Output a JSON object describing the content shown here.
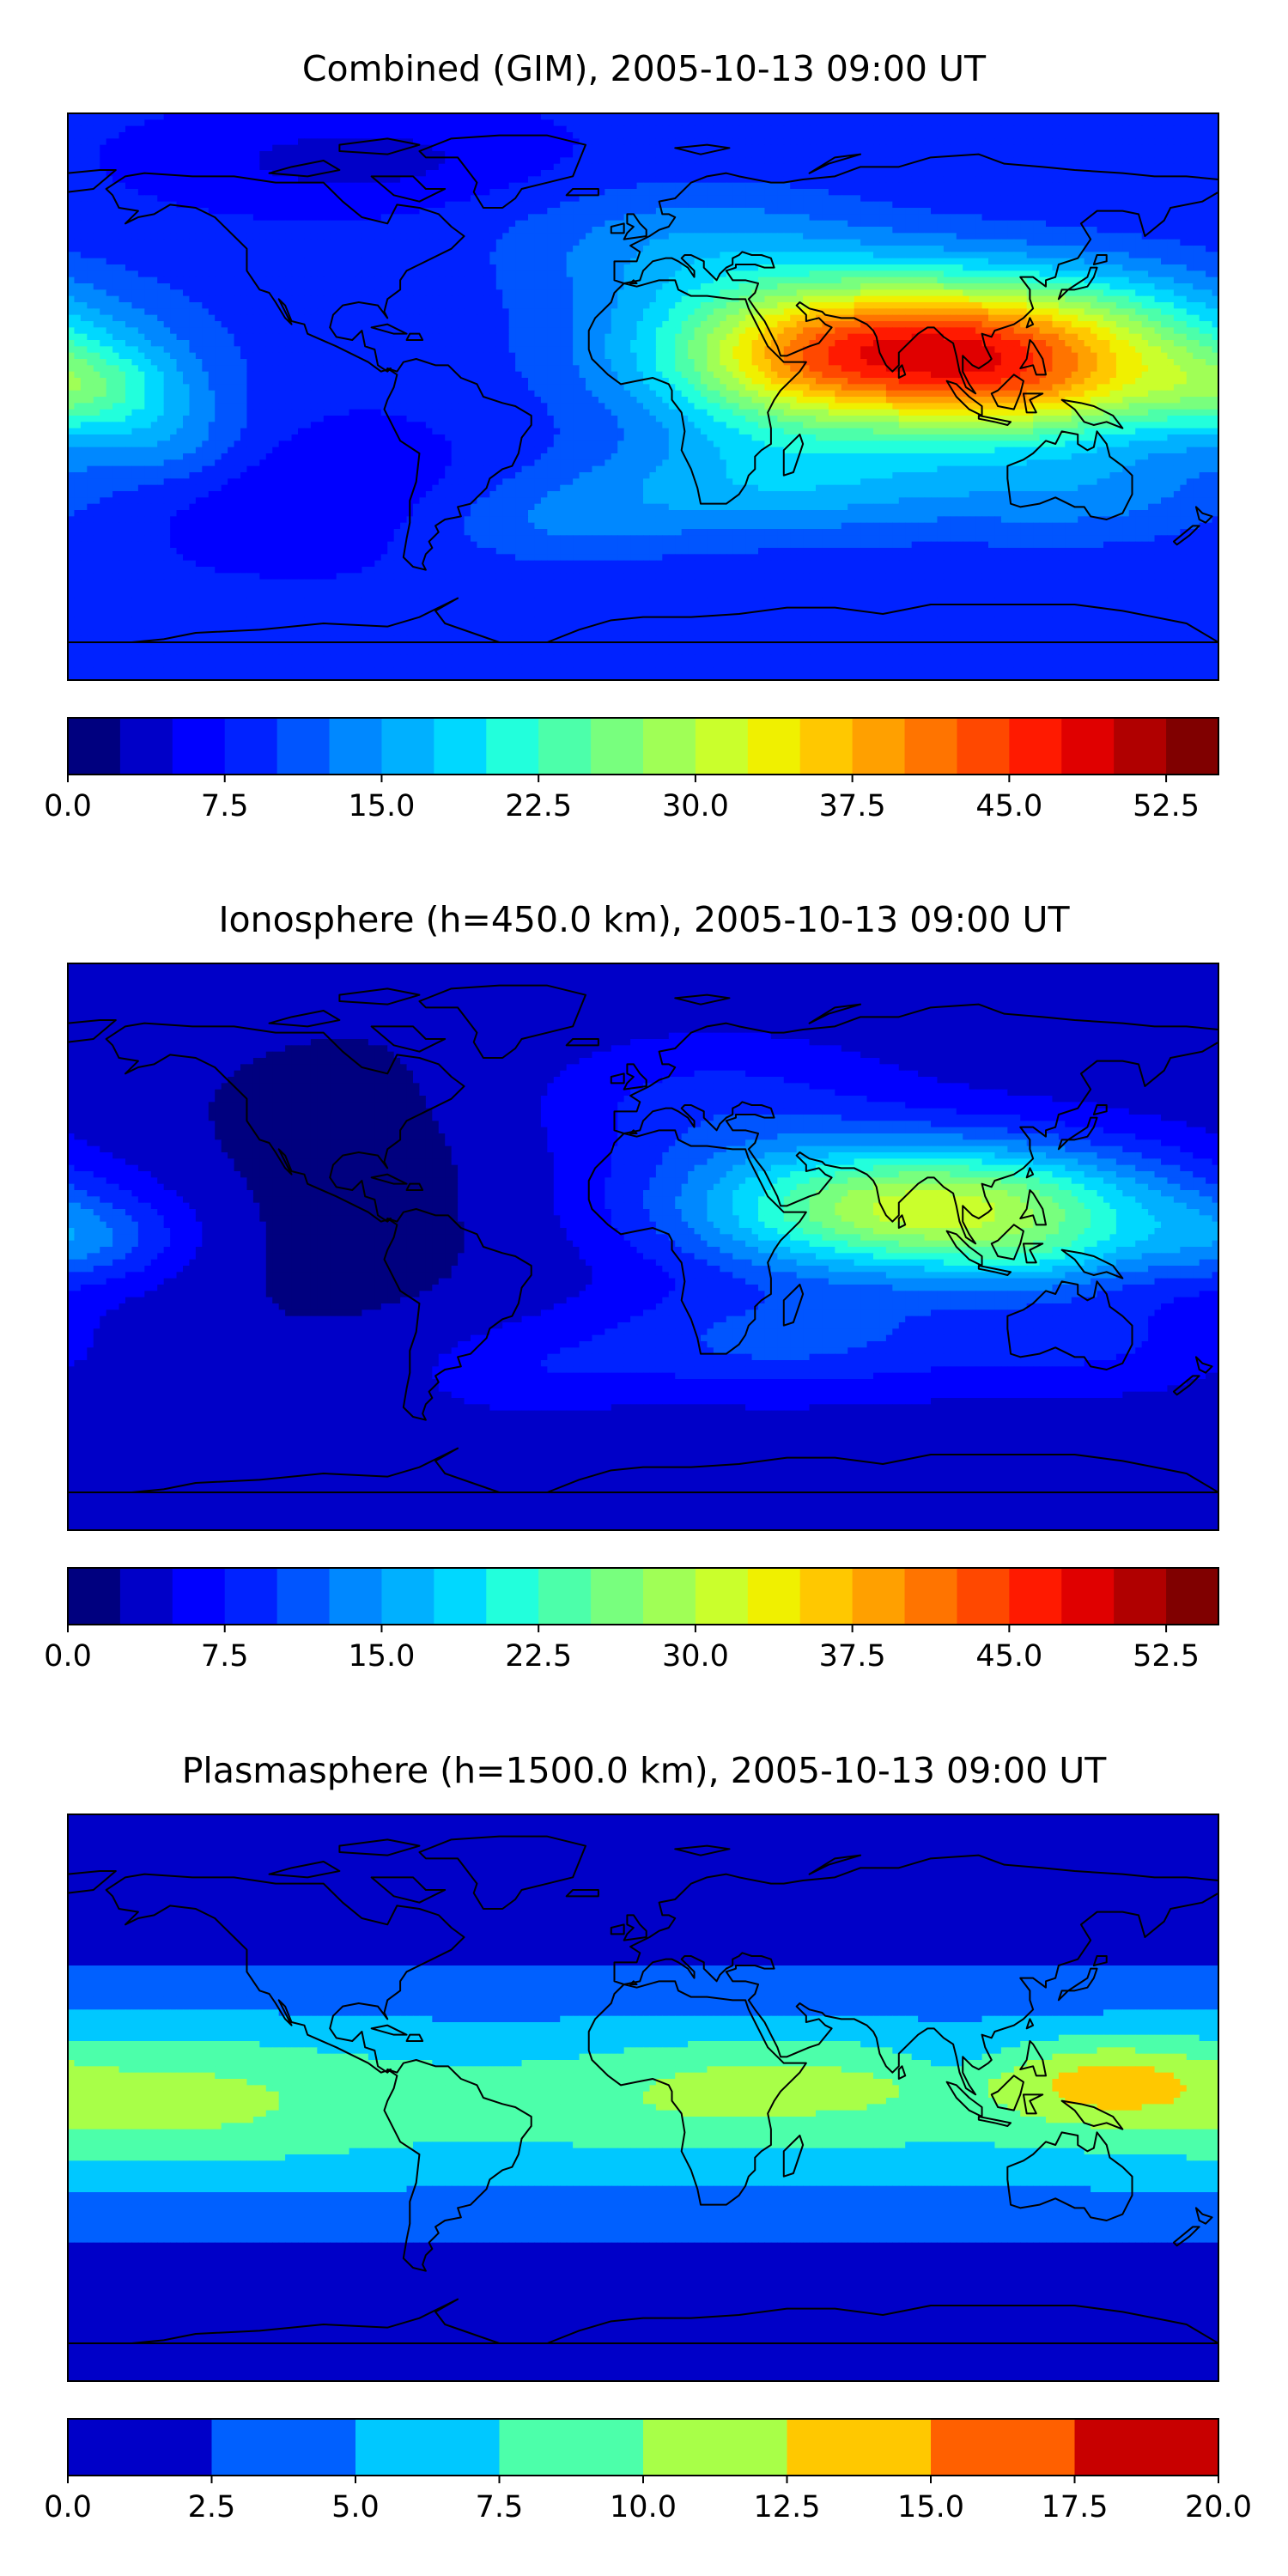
{
  "figure": {
    "background": "#ffffff",
    "panels": [
      {
        "title": "Combined (GIM), 2005-10-13 09:00 UT"
      },
      {
        "title": "Ionosphere  (h=450.0 km), 2005-10-13 09:00 UT"
      },
      {
        "title": "Plasmasphere (h=1500.0 km), 2005-10-13 09:00 UT"
      }
    ]
  },
  "chart_data": [
    {
      "type": "heatmap",
      "title": "Combined (GIM), 2005-10-13 09:00 UT",
      "projection": "PlateCarree global map with coastlines",
      "grid": false,
      "legend": "horizontal colorbar below map",
      "colorbar": {
        "min": 0,
        "max": 55,
        "step": 2.5,
        "ticks": [
          0,
          7.5,
          15,
          22.5,
          30,
          37.5,
          45,
          52.5
        ],
        "tick_labels": [
          "0.0",
          "7.5",
          "15.0",
          "22.5",
          "30.0",
          "37.5",
          "45.0",
          "52.5"
        ],
        "colors": [
          "#00007f",
          "#0000c8",
          "#0000ff",
          "#0022ff",
          "#0055ff",
          "#0088ff",
          "#00b0ff",
          "#00d8ff",
          "#22ffdc",
          "#4cffaa",
          "#78ff7e",
          "#a0ff56",
          "#caff2c",
          "#f0f000",
          "#ffc800",
          "#ffa000",
          "#ff7400",
          "#ff4800",
          "#ff1a00",
          "#e00000",
          "#b00000",
          "#800000"
        ]
      },
      "field": {
        "base": 8,
        "blobs": [
          {
            "lon": 95,
            "lat": 14,
            "slon": 55,
            "slat": 17,
            "amp": 40
          },
          {
            "lon": 45,
            "lat": 10,
            "slon": 26,
            "slat": 17,
            "amp": 6
          },
          {
            "lon": 120,
            "lat": -2,
            "slon": 25,
            "slat": 9,
            "amp": 5
          },
          {
            "lon": 40,
            "lat": -28,
            "slon": 45,
            "slat": 12,
            "amp": 8
          },
          {
            "lon": 140,
            "lat": -30,
            "slon": 35,
            "slat": 12,
            "amp": 5
          },
          {
            "lon": 15,
            "lat": 48,
            "slon": 40,
            "slat": 14,
            "amp": 6
          },
          {
            "lon": -175,
            "lat": 2,
            "slon": 22,
            "slat": 10,
            "amp": 10
          },
          {
            "lon": -150,
            "lat": -15,
            "slon": 20,
            "slat": 10,
            "amp": 5
          },
          {
            "lon": -30,
            "lat": -40,
            "slon": 30,
            "slat": 10,
            "amp": 4
          },
          {
            "lon": -90,
            "lat": 75,
            "slon": 40,
            "slat": 10,
            "amp": -4
          },
          {
            "lon": -100,
            "lat": -30,
            "slon": 40,
            "slat": 15,
            "amp": -3
          }
        ]
      }
    },
    {
      "type": "heatmap",
      "title": "Ionosphere  (h=450.0 km), 2005-10-13 09:00 UT",
      "projection": "PlateCarree global map with coastlines",
      "grid": false,
      "legend": "horizontal colorbar below map",
      "colorbar": {
        "min": 0,
        "max": 55,
        "step": 2.5,
        "ticks": [
          0,
          7.5,
          15,
          22.5,
          30,
          37.5,
          45,
          52.5
        ],
        "tick_labels": [
          "0.0",
          "7.5",
          "15.0",
          "22.5",
          "30.0",
          "37.5",
          "45.0",
          "52.5"
        ],
        "colors": [
          "#00007f",
          "#0000c8",
          "#0000ff",
          "#0022ff",
          "#0055ff",
          "#0088ff",
          "#00b0ff",
          "#00d8ff",
          "#22ffdc",
          "#4cffaa",
          "#78ff7e",
          "#a0ff56",
          "#caff2c",
          "#f0f000",
          "#ffc800",
          "#ffa000",
          "#ff7400",
          "#ff4800",
          "#ff1a00",
          "#e00000",
          "#b00000",
          "#800000"
        ]
      },
      "field": {
        "base": 3.5,
        "blobs": [
          {
            "lon": 90,
            "lat": 12,
            "slon": 52,
            "slat": 15,
            "amp": 28
          },
          {
            "lon": 125,
            "lat": -3,
            "slon": 20,
            "slat": 8,
            "amp": 4
          },
          {
            "lon": 40,
            "lat": -30,
            "slon": 45,
            "slat": 12,
            "amp": 7
          },
          {
            "lon": 140,
            "lat": -30,
            "slon": 35,
            "slat": 12,
            "amp": 4
          },
          {
            "lon": 20,
            "lat": 45,
            "slon": 40,
            "slat": 15,
            "amp": 5
          },
          {
            "lon": -175,
            "lat": 2,
            "slon": 22,
            "slat": 10,
            "amp": 7
          },
          {
            "lon": -40,
            "lat": -40,
            "slon": 25,
            "slat": 10,
            "amp": 3
          },
          {
            "lon": -90,
            "lat": 20,
            "slon": 50,
            "slat": 40,
            "amp": -2
          }
        ]
      }
    },
    {
      "type": "heatmap",
      "title": "Plasmasphere (h=1500.0 km), 2005-10-13 09:00 UT",
      "projection": "PlateCarree global map with coastlines",
      "grid": false,
      "legend": "horizontal colorbar below map",
      "colorbar": {
        "min": 0,
        "max": 20,
        "step": 2.5,
        "ticks": [
          0,
          2.5,
          5,
          7.5,
          10,
          12.5,
          15,
          17.5,
          20
        ],
        "tick_labels": [
          "0.0",
          "2.5",
          "5.0",
          "7.5",
          "10.0",
          "12.5",
          "15.0",
          "17.5",
          "20.0"
        ],
        "colors": [
          "#0000c8",
          "#0060ff",
          "#00c8ff",
          "#4cffaa",
          "#a8ff48",
          "#ffc800",
          "#ff6000",
          "#c80000"
        ]
      },
      "field": {
        "base": 1.2,
        "blobs": [
          {
            "lon": 0,
            "lat": -2,
            "slon": 1000,
            "slat": 24,
            "amp": 7
          },
          {
            "lon": -150,
            "lat": 0,
            "slon": 40,
            "slat": 16,
            "amp": 2.8
          },
          {
            "lon": 145,
            "lat": 5,
            "slon": 22,
            "slat": 9,
            "amp": 5.5
          },
          {
            "lon": 50,
            "lat": 5,
            "slon": 35,
            "slat": 10,
            "amp": 2.8
          },
          {
            "lon": 10,
            "lat": 0,
            "slon": 25,
            "slat": 12,
            "amp": 1.0
          },
          {
            "lon": 95,
            "lat": 15,
            "slon": 10,
            "slat": 5,
            "amp": -1.8
          }
        ]
      }
    }
  ]
}
